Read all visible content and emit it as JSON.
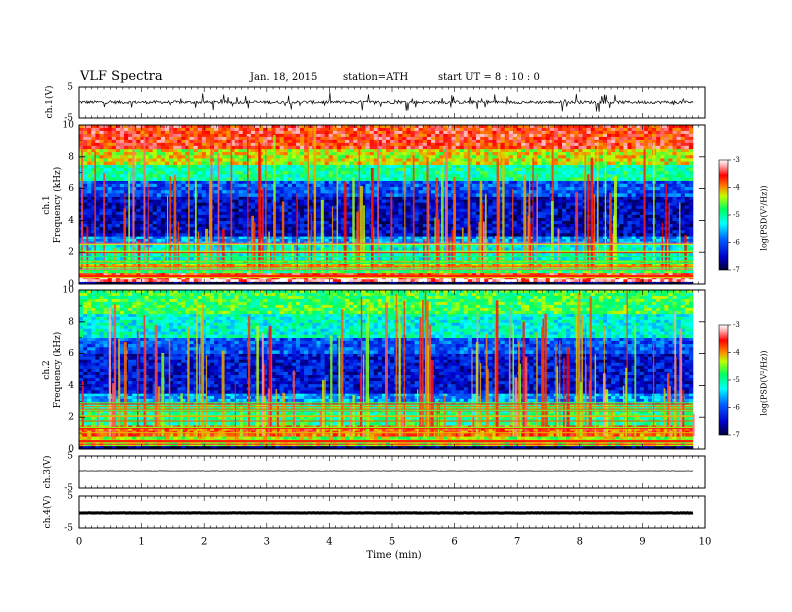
{
  "header": {
    "title": "VLF  Spectra",
    "date": "Jan. 18, 2015",
    "station": "station=ATH",
    "start": "start  UT  =   8 : 10 : 0"
  },
  "colors": {
    "scale": [
      "#000033",
      "#00007f",
      "#0000ff",
      "#0080ff",
      "#00ffff",
      "#00ff80",
      "#80ff00",
      "#ffff00",
      "#ff8000",
      "#ff0000",
      "#ff9999",
      "#ffffff"
    ],
    "trace": "#000000"
  },
  "chart_data": [
    {
      "id": "ch1v",
      "type": "line",
      "ylabel": "ch.1(V)",
      "yticks": [
        "5",
        "-5"
      ],
      "ylim": [
        -5,
        5
      ],
      "xlim": [
        0,
        10
      ],
      "description_trace": "noisy waveform around ~0 V with spikes",
      "baseline": 0.1
    },
    {
      "id": "ch1spec",
      "type": "heatmap",
      "ylabel_top": "ch.1",
      "ylabel": "Frequency  (kHz)",
      "yticks": [
        "10",
        "8",
        "6",
        "4",
        "2",
        "0"
      ],
      "ylim": [
        0,
        10
      ],
      "xlim": [
        0,
        9.83
      ],
      "colorbar": {
        "label": "log(PSD(V²/Hz))",
        "ticks": [
          "-3",
          "-4",
          "-5",
          "-6",
          "-7"
        ],
        "range": [
          -7,
          -3
        ]
      },
      "bands": [
        {
          "f0": 0.0,
          "f1": 0.15,
          "v": -6.8
        },
        {
          "f0": 0.15,
          "f1": 0.45,
          "v": -3.2
        },
        {
          "f0": 0.45,
          "f1": 0.7,
          "v": -3.6
        },
        {
          "f0": 0.7,
          "f1": 1.0,
          "v": -4.8
        },
        {
          "f0": 1.0,
          "f1": 1.5,
          "v": -4.2
        },
        {
          "f0": 1.5,
          "f1": 2.5,
          "v": -5.2
        },
        {
          "f0": 2.5,
          "f1": 3.0,
          "v": -5.7
        },
        {
          "f0": 3.0,
          "f1": 5.5,
          "v": -6.5
        },
        {
          "f0": 5.5,
          "f1": 6.5,
          "v": -6.0
        },
        {
          "f0": 6.5,
          "f1": 7.5,
          "v": -5.0
        },
        {
          "f0": 7.5,
          "f1": 8.5,
          "v": -4.3
        },
        {
          "f0": 8.5,
          "f1": 10.0,
          "v": -3.6
        }
      ]
    },
    {
      "id": "ch2spec",
      "type": "heatmap",
      "ylabel_top": "ch.2",
      "ylabel": "Frequency  (kHz)",
      "yticks": [
        "10",
        "8",
        "6",
        "4",
        "2",
        "0"
      ],
      "ylim": [
        0,
        10
      ],
      "xlim": [
        0,
        9.83
      ],
      "colorbar": {
        "label": "log(PSD(V²/Hz))",
        "ticks": [
          "-3",
          "-4",
          "-5",
          "-6",
          "-7"
        ],
        "range": [
          -7,
          -3
        ]
      },
      "bands": [
        {
          "f0": 0.0,
          "f1": 0.2,
          "v": -6.8
        },
        {
          "f0": 0.2,
          "f1": 0.8,
          "v": -4.4
        },
        {
          "f0": 0.8,
          "f1": 1.5,
          "v": -3.8
        },
        {
          "f0": 1.5,
          "f1": 2.8,
          "v": -4.9
        },
        {
          "f0": 2.8,
          "f1": 3.5,
          "v": -5.7
        },
        {
          "f0": 3.5,
          "f1": 6.0,
          "v": -6.4
        },
        {
          "f0": 6.0,
          "f1": 7.0,
          "v": -6.0
        },
        {
          "f0": 7.0,
          "f1": 8.5,
          "v": -5.2
        },
        {
          "f0": 8.5,
          "f1": 10.0,
          "v": -4.7
        }
      ]
    },
    {
      "id": "ch3v",
      "type": "line",
      "ylabel": "ch.3(V)",
      "yticks": [
        "5",
        "-5"
      ],
      "ylim": [
        -5,
        5
      ],
      "xlim": [
        0,
        9.83
      ],
      "baseline": 0.3
    },
    {
      "id": "ch4v",
      "type": "line",
      "ylabel": "ch.4(V)",
      "yticks": [
        "5",
        "-5"
      ],
      "ylim": [
        -5,
        5
      ],
      "xlim": [
        0,
        9.83
      ],
      "baseline": -0.3
    }
  ],
  "xaxis": {
    "label": "Time  (min)",
    "ticks": [
      "0",
      "1",
      "2",
      "3",
      "4",
      "5",
      "6",
      "7",
      "8",
      "9",
      "10"
    ],
    "xlim": [
      0,
      10
    ]
  }
}
